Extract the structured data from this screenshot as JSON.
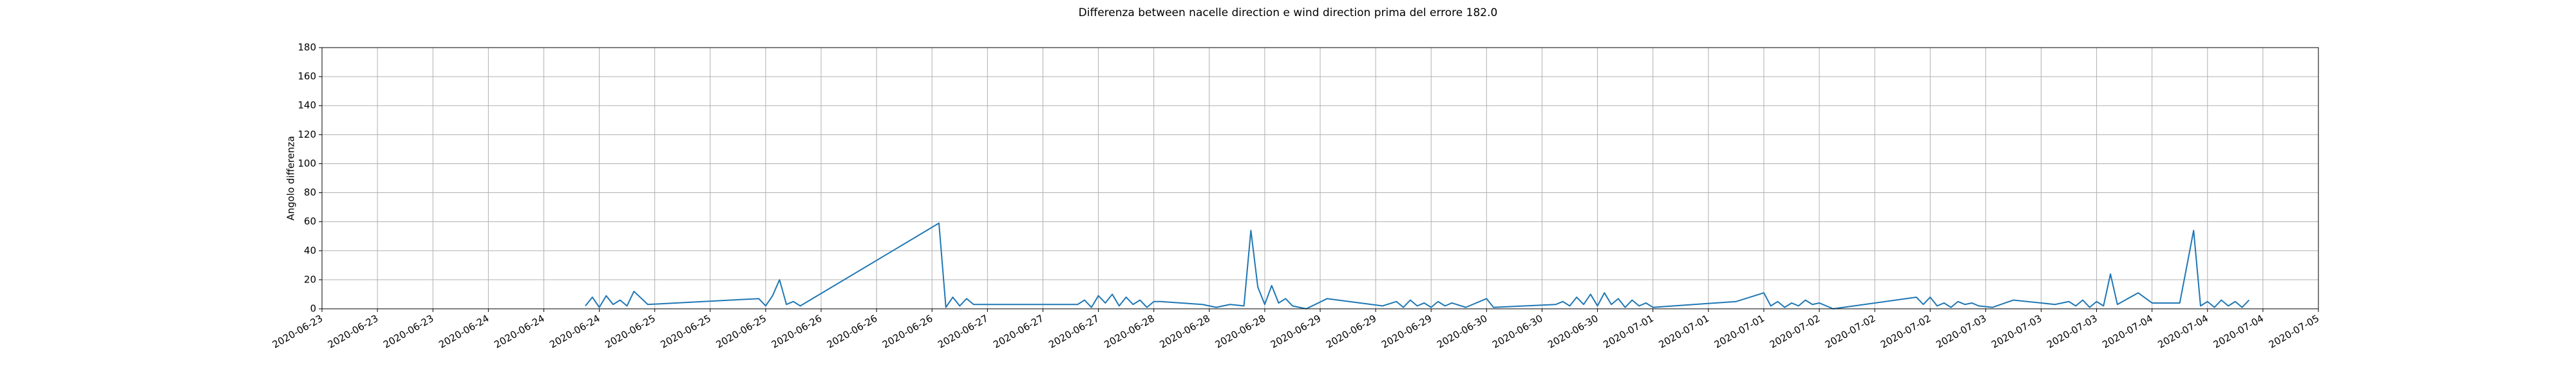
{
  "chart_data": {
    "type": "line",
    "title": "Differenza between nacelle direction e wind direction prima del errore 182.0",
    "ylabel": "Angolo differenza",
    "color": "#1f77b4",
    "grid": true,
    "x": [
      "2020-06-24T14:00",
      "2020-06-24T15:00",
      "2020-06-24T16:00",
      "2020-06-24T17:00",
      "2020-06-24T18:00",
      "2020-06-24T19:00",
      "2020-06-24T20:00",
      "2020-06-24T21:00",
      "2020-06-24T23:00",
      "2020-06-25T15:00",
      "2020-06-25T16:00",
      "2020-06-25T17:00",
      "2020-06-25T18:00",
      "2020-06-25T19:00",
      "2020-06-25T20:00",
      "2020-06-25T21:00",
      "2020-06-26T17:00",
      "2020-06-26T18:00",
      "2020-06-26T19:00",
      "2020-06-26T20:00",
      "2020-06-26T21:00",
      "2020-06-26T22:00",
      "2020-06-27T13:00",
      "2020-06-27T14:00",
      "2020-06-27T15:00",
      "2020-06-27T16:00",
      "2020-06-27T17:00",
      "2020-06-27T18:00",
      "2020-06-27T19:00",
      "2020-06-27T20:00",
      "2020-06-27T21:00",
      "2020-06-27T22:00",
      "2020-06-27T23:00",
      "2020-06-28T00:00",
      "2020-06-28T01:00",
      "2020-06-28T07:00",
      "2020-06-28T09:00",
      "2020-06-28T11:00",
      "2020-06-28T13:00",
      "2020-06-28T14:00",
      "2020-06-28T15:00",
      "2020-06-28T16:00",
      "2020-06-28T17:00",
      "2020-06-28T18:00",
      "2020-06-28T19:00",
      "2020-06-28T20:00",
      "2020-06-28T22:00",
      "2020-06-29T01:00",
      "2020-06-29T09:00",
      "2020-06-29T11:00",
      "2020-06-29T12:00",
      "2020-06-29T13:00",
      "2020-06-29T14:00",
      "2020-06-29T15:00",
      "2020-06-29T16:00",
      "2020-06-29T17:00",
      "2020-06-29T18:00",
      "2020-06-29T19:00",
      "2020-06-29T21:00",
      "2020-06-30T00:00",
      "2020-06-30T01:00",
      "2020-06-30T10:00",
      "2020-06-30T11:00",
      "2020-06-30T12:00",
      "2020-06-30T13:00",
      "2020-06-30T14:00",
      "2020-06-30T15:00",
      "2020-06-30T16:00",
      "2020-06-30T17:00",
      "2020-06-30T18:00",
      "2020-06-30T19:00",
      "2020-06-30T20:00",
      "2020-06-30T21:00",
      "2020-06-30T22:00",
      "2020-06-30T23:00",
      "2020-07-01T00:00",
      "2020-07-01T12:00",
      "2020-07-01T16:00",
      "2020-07-01T17:00",
      "2020-07-01T18:00",
      "2020-07-01T19:00",
      "2020-07-01T20:00",
      "2020-07-01T21:00",
      "2020-07-01T22:00",
      "2020-07-01T23:00",
      "2020-07-02T00:00",
      "2020-07-02T02:00",
      "2020-07-02T14:00",
      "2020-07-02T15:00",
      "2020-07-02T16:00",
      "2020-07-02T17:00",
      "2020-07-02T18:00",
      "2020-07-02T19:00",
      "2020-07-02T20:00",
      "2020-07-02T21:00",
      "2020-07-02T22:00",
      "2020-07-02T23:00",
      "2020-07-03T01:00",
      "2020-07-03T04:00",
      "2020-07-03T10:00",
      "2020-07-03T12:00",
      "2020-07-03T13:00",
      "2020-07-03T14:00",
      "2020-07-03T15:00",
      "2020-07-03T16:00",
      "2020-07-03T17:00",
      "2020-07-03T18:00",
      "2020-07-03T19:00",
      "2020-07-03T22:00",
      "2020-07-04T00:00",
      "2020-07-04T04:00",
      "2020-07-04T06:00",
      "2020-07-04T07:00",
      "2020-07-04T08:00",
      "2020-07-04T09:00",
      "2020-07-04T10:00",
      "2020-07-04T11:00",
      "2020-07-04T12:00",
      "2020-07-04T13:00",
      "2020-07-04T14:00"
    ],
    "values": [
      2,
      8,
      1,
      9,
      3,
      6,
      2,
      12,
      3,
      7,
      2,
      9,
      20,
      3,
      5,
      2,
      59,
      1,
      8,
      2,
      7,
      3,
      3,
      6,
      1,
      9,
      4,
      10,
      2,
      8,
      3,
      6,
      1,
      5,
      5,
      3,
      1,
      3,
      2,
      54,
      15,
      3,
      16,
      4,
      7,
      2,
      0,
      7,
      2,
      5,
      1,
      6,
      2,
      4,
      1,
      5,
      2,
      4,
      1,
      7,
      1,
      3,
      5,
      2,
      8,
      3,
      10,
      2,
      11,
      3,
      7,
      1,
      6,
      2,
      4,
      1,
      5,
      11,
      2,
      5,
      1,
      4,
      2,
      6,
      3,
      4,
      0,
      8,
      3,
      8,
      2,
      4,
      1,
      5,
      3,
      4,
      2,
      1,
      6,
      3,
      5,
      2,
      6,
      1,
      5,
      2,
      24,
      3,
      11,
      4,
      4,
      54,
      2,
      5,
      1,
      6,
      2,
      5,
      1,
      6
    ],
    "xlim": [
      "2020-06-23T00:00",
      "2020-07-05T00:00"
    ],
    "xticks": [
      {
        "value": "2020-06-23T00:00",
        "label": "2020-06-23"
      },
      {
        "value": "2020-06-23T08:00",
        "label": "2020-06-23"
      },
      {
        "value": "2020-06-23T16:00",
        "label": "2020-06-23"
      },
      {
        "value": "2020-06-24T00:00",
        "label": "2020-06-24"
      },
      {
        "value": "2020-06-24T08:00",
        "label": "2020-06-24"
      },
      {
        "value": "2020-06-24T16:00",
        "label": "2020-06-24"
      },
      {
        "value": "2020-06-25T00:00",
        "label": "2020-06-25"
      },
      {
        "value": "2020-06-25T08:00",
        "label": "2020-06-25"
      },
      {
        "value": "2020-06-25T16:00",
        "label": "2020-06-25"
      },
      {
        "value": "2020-06-26T00:00",
        "label": "2020-06-26"
      },
      {
        "value": "2020-06-26T08:00",
        "label": "2020-06-26"
      },
      {
        "value": "2020-06-26T16:00",
        "label": "2020-06-26"
      },
      {
        "value": "2020-06-27T00:00",
        "label": "2020-06-27"
      },
      {
        "value": "2020-06-27T08:00",
        "label": "2020-06-27"
      },
      {
        "value": "2020-06-27T16:00",
        "label": "2020-06-27"
      },
      {
        "value": "2020-06-28T00:00",
        "label": "2020-06-28"
      },
      {
        "value": "2020-06-28T08:00",
        "label": "2020-06-28"
      },
      {
        "value": "2020-06-28T16:00",
        "label": "2020-06-28"
      },
      {
        "value": "2020-06-29T00:00",
        "label": "2020-06-29"
      },
      {
        "value": "2020-06-29T08:00",
        "label": "2020-06-29"
      },
      {
        "value": "2020-06-29T16:00",
        "label": "2020-06-29"
      },
      {
        "value": "2020-06-30T00:00",
        "label": "2020-06-30"
      },
      {
        "value": "2020-06-30T08:00",
        "label": "2020-06-30"
      },
      {
        "value": "2020-06-30T16:00",
        "label": "2020-06-30"
      },
      {
        "value": "2020-07-01T00:00",
        "label": "2020-07-01"
      },
      {
        "value": "2020-07-01T08:00",
        "label": "2020-07-01"
      },
      {
        "value": "2020-07-01T16:00",
        "label": "2020-07-01"
      },
      {
        "value": "2020-07-02T00:00",
        "label": "2020-07-02"
      },
      {
        "value": "2020-07-02T08:00",
        "label": "2020-07-02"
      },
      {
        "value": "2020-07-02T16:00",
        "label": "2020-07-02"
      },
      {
        "value": "2020-07-03T00:00",
        "label": "2020-07-03"
      },
      {
        "value": "2020-07-03T08:00",
        "label": "2020-07-03"
      },
      {
        "value": "2020-07-03T16:00",
        "label": "2020-07-03"
      },
      {
        "value": "2020-07-04T00:00",
        "label": "2020-07-04"
      },
      {
        "value": "2020-07-04T08:00",
        "label": "2020-07-04"
      },
      {
        "value": "2020-07-04T16:00",
        "label": "2020-07-04"
      },
      {
        "value": "2020-07-05T00:00",
        "label": "2020-07-05"
      }
    ],
    "ylim": [
      0,
      180
    ],
    "yticks": [
      0,
      20,
      40,
      60,
      80,
      100,
      120,
      140,
      160,
      180
    ]
  }
}
